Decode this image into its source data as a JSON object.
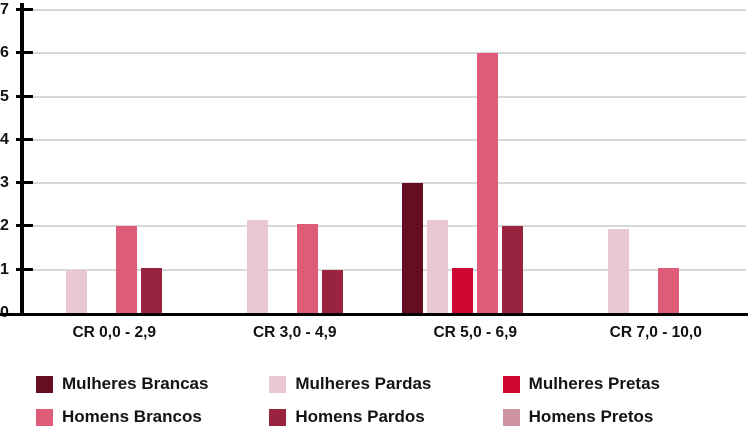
{
  "chart_data": {
    "type": "bar",
    "title": "",
    "xlabel": "",
    "ylabel": "",
    "categories": [
      "CR 0,0 - 2,9",
      "CR 3,0 - 4,9",
      "CR 5,0 - 6,9",
      "CR 7,0 - 10,0"
    ],
    "series": [
      {
        "name": "Mulheres Brancas",
        "color": "#670D22",
        "values": [
          0,
          0,
          3,
          0
        ]
      },
      {
        "name": "Mulheres Pardas",
        "color": "#E9C8D2",
        "values": [
          1,
          2.15,
          2.15,
          1.95
        ]
      },
      {
        "name": "Mulheres Pretas",
        "color": "#CE0830",
        "values": [
          0,
          0,
          1.05,
          0
        ]
      },
      {
        "name": "Homens Brancos",
        "color": "#DE5C78",
        "values": [
          2,
          2.05,
          6,
          1.05
        ]
      },
      {
        "name": "Homens Pardos",
        "color": "#98243F",
        "values": [
          1.05,
          1,
          2,
          0
        ]
      },
      {
        "name": "Homens Pretos",
        "color": "#CE93A0",
        "values": [
          0,
          0,
          0,
          0
        ]
      }
    ],
    "ylim": [
      0,
      7
    ],
    "yticks": [
      0,
      1,
      2,
      3,
      4,
      5,
      6,
      7
    ],
    "grid": true,
    "legend_position": "bottom"
  },
  "style": {
    "axis_color": "#000000",
    "gridline_color": "#D8D8D8",
    "text_color": "#111111",
    "background": "#FFFFFF"
  }
}
